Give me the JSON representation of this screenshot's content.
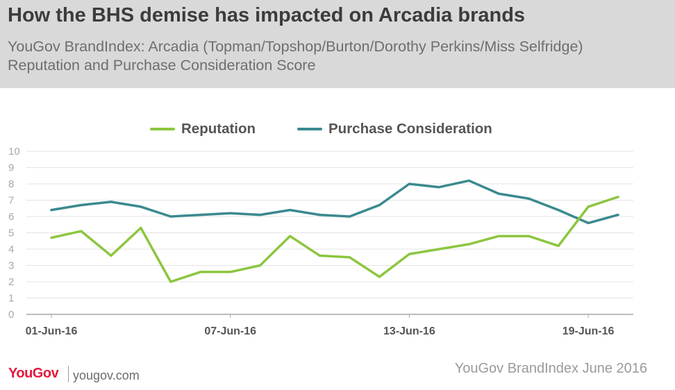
{
  "header": {
    "title": "How the BHS demise has impacted on Arcadia brands",
    "subtitle_line1": "YouGov BrandIndex: Arcadia (Topman/Topshop/Burton/Dorothy Perkins/Miss Selfridge)",
    "subtitle_line2": "Reputation and Purchase Consideration Score"
  },
  "footer": {
    "logo": "YouGov",
    "site": "yougov.com",
    "source": "YouGov BrandIndex June 2016"
  },
  "colors": {
    "header_bg": "#d9d9d9",
    "reputation": "#8cc63f",
    "purchase_consideration": "#3a8a8f",
    "grid": "#e3e3e3",
    "axis": "#a6a6a6",
    "brand": "#e6183c"
  },
  "chart_data": {
    "type": "line",
    "x": [
      "01-Jun-16",
      "02-Jun-16",
      "03-Jun-16",
      "04-Jun-16",
      "05-Jun-16",
      "06-Jun-16",
      "07-Jun-16",
      "08-Jun-16",
      "09-Jun-16",
      "10-Jun-16",
      "11-Jun-16",
      "12-Jun-16",
      "13-Jun-16",
      "14-Jun-16",
      "15-Jun-16",
      "16-Jun-16",
      "17-Jun-16",
      "18-Jun-16",
      "19-Jun-16",
      "20-Jun-16"
    ],
    "x_tick_labels": [
      "01-Jun-16",
      "07-Jun-16",
      "13-Jun-16",
      "19-Jun-16"
    ],
    "x_tick_indices": [
      0,
      6,
      12,
      18
    ],
    "y_ticks": [
      "0",
      "1",
      "2",
      "3",
      "4",
      "5",
      "6",
      "7",
      "8",
      "9",
      "10"
    ],
    "ylim": [
      0,
      10
    ],
    "grid": true,
    "legend_position": "top",
    "series": [
      {
        "name": "Reputation",
        "color": "#8cc63f",
        "values": [
          4.7,
          5.1,
          3.6,
          5.3,
          2.0,
          2.6,
          2.6,
          3.0,
          4.8,
          3.6,
          3.5,
          2.3,
          3.7,
          4.0,
          4.3,
          4.8,
          4.8,
          4.2,
          6.6,
          7.2
        ]
      },
      {
        "name": "Purchase Consideration",
        "color": "#3a8a8f",
        "values": [
          6.4,
          6.7,
          6.9,
          6.6,
          6.0,
          6.1,
          6.2,
          6.1,
          6.4,
          6.1,
          6.0,
          6.7,
          8.0,
          7.8,
          8.2,
          7.4,
          7.1,
          6.4,
          5.6,
          6.1
        ]
      }
    ]
  }
}
